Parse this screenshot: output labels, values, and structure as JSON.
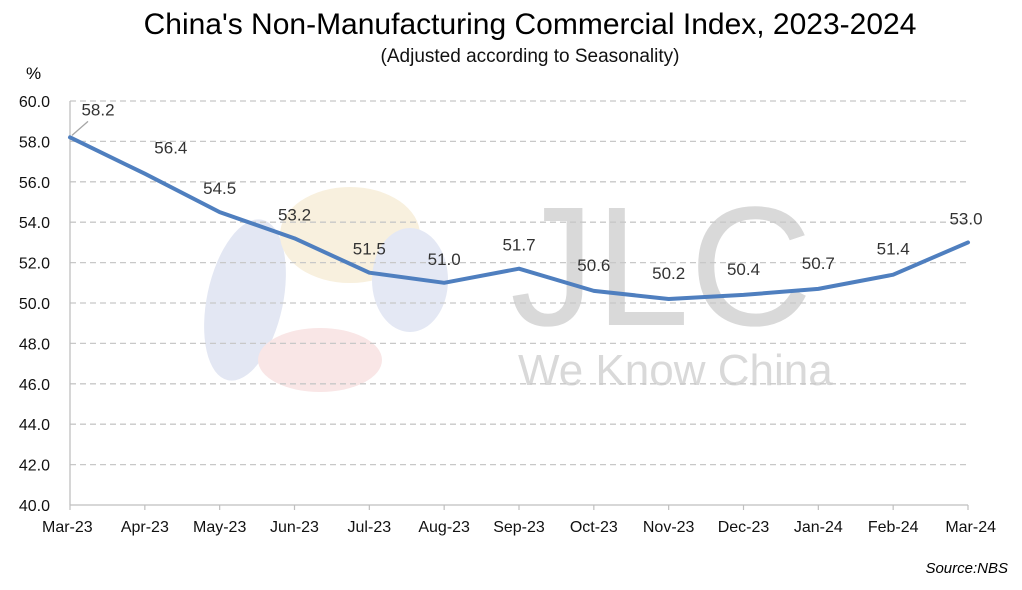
{
  "chart_data": {
    "type": "line",
    "title": "China's Non-Manufacturing Commercial Index, 2023-2024",
    "subtitle": "(Adjusted according to Seasonality)",
    "ylabel": "%",
    "xlabel": "",
    "categories": [
      "Mar-23",
      "Apr-23",
      "May-23",
      "Jun-23",
      "Jul-23",
      "Aug-23",
      "Sep-23",
      "Oct-23",
      "Nov-23",
      "Dec-23",
      "Jan-24",
      "Feb-24",
      "Mar-24"
    ],
    "series": [
      {
        "values": [
          58.2,
          56.4,
          54.5,
          53.2,
          51.5,
          51.0,
          51.7,
          50.6,
          50.2,
          50.4,
          50.7,
          51.4,
          53.0
        ],
        "labels": [
          "58.2",
          "56.4",
          "54.5",
          "53.2",
          "51.5",
          "51.0",
          "51.7",
          "50.6",
          "50.2",
          "50.4",
          "50.7",
          "51.4",
          "53.0"
        ],
        "color": "#4f7fbf"
      }
    ],
    "ylim": [
      40,
      60
    ],
    "yticks": [
      "40.0",
      "42.0",
      "44.0",
      "46.0",
      "48.0",
      "50.0",
      "52.0",
      "54.0",
      "56.0",
      "58.0",
      "60.0"
    ],
    "grid": true,
    "legend": "none"
  },
  "source": "Source:NBS",
  "watermark": {
    "logo_text": "JLC",
    "tagline": "We Know China"
  },
  "colors": {
    "line": "#4f7fbf",
    "grid": "#c8c8c8",
    "watermark": "#d9d9d9"
  }
}
